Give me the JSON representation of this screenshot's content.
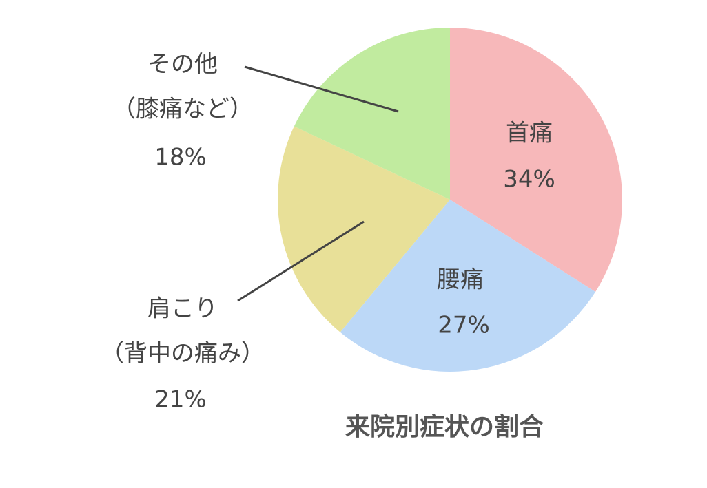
{
  "chart_data": {
    "type": "pie",
    "title": "来院別症状の割合",
    "categories": [
      "首痛",
      "腰痛",
      "肩こり",
      "その他"
    ],
    "category_notes": [
      null,
      null,
      "（背中の痛み）",
      "（膝痛など）"
    ],
    "values": [
      34,
      27,
      21,
      18
    ],
    "value_labels": [
      "34%",
      "27%",
      "21%",
      "18%"
    ],
    "colors": [
      "#f7b8ba",
      "#bcd8f7",
      "#e8e098",
      "#c1eb9f"
    ]
  }
}
